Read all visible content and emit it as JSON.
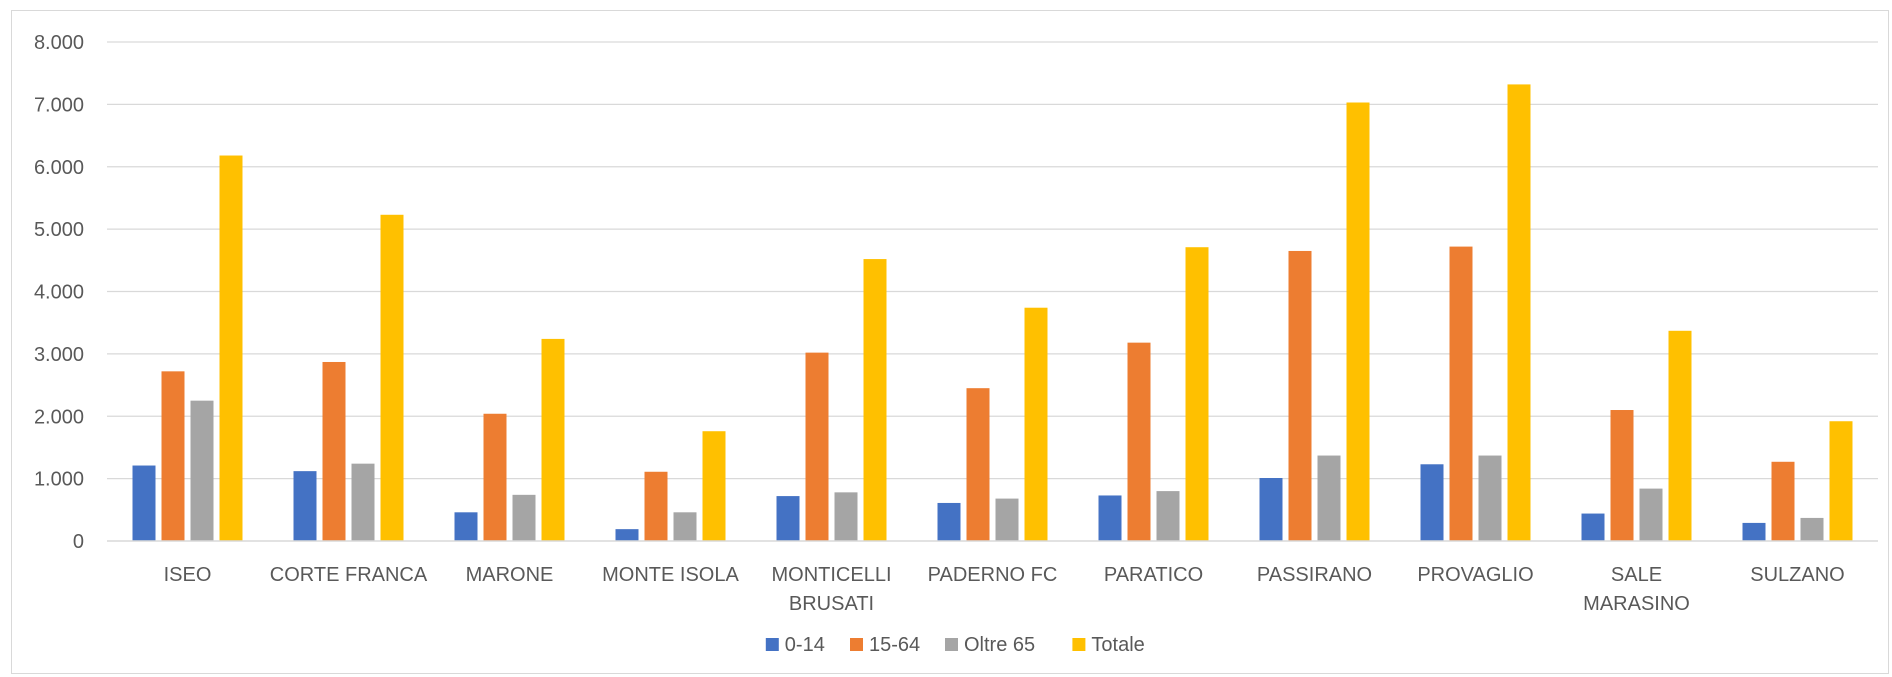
{
  "chart_data": {
    "type": "bar",
    "title": "",
    "xlabel": "",
    "ylabel": "",
    "ylim": [
      0,
      8000
    ],
    "y_ticks": [
      0,
      1000,
      2000,
      3000,
      4000,
      5000,
      6000,
      7000,
      8000
    ],
    "y_tick_labels": [
      "0",
      "1.000",
      "2.000",
      "3.000",
      "4.000",
      "5.000",
      "6.000",
      "7.000",
      "8.000"
    ],
    "grid": true,
    "legend_position": "bottom",
    "categories": [
      [
        "ISEO"
      ],
      [
        "CORTE FRANCA"
      ],
      [
        "MARONE"
      ],
      [
        "MONTE ISOLA"
      ],
      [
        "MONTICELLI",
        "BRUSATI"
      ],
      [
        "PADERNO FC"
      ],
      [
        "PARATICO"
      ],
      [
        "PASSIRANO"
      ],
      [
        "PROVAGLIO"
      ],
      [
        "SALE",
        "MARASINO"
      ],
      [
        "SULZANO"
      ]
    ],
    "series": [
      {
        "name": "0-14",
        "color": "#4472c4",
        "values": [
          1210,
          1120,
          460,
          190,
          720,
          610,
          730,
          1010,
          1230,
          440,
          290
        ]
      },
      {
        "name": "15-64",
        "color": "#ed7d31",
        "values": [
          2720,
          2870,
          2040,
          1110,
          3020,
          2450,
          3180,
          4650,
          4720,
          2100,
          1270
        ]
      },
      {
        "name": "Oltre 65",
        "color": "#a5a5a5",
        "values": [
          2250,
          1240,
          740,
          460,
          780,
          680,
          800,
          1370,
          1370,
          840,
          370
        ]
      },
      {
        "name": "Totale",
        "color": "#ffc000",
        "values": [
          6180,
          5230,
          3240,
          1760,
          4520,
          3740,
          4710,
          7030,
          7320,
          3370,
          1920
        ]
      }
    ]
  }
}
